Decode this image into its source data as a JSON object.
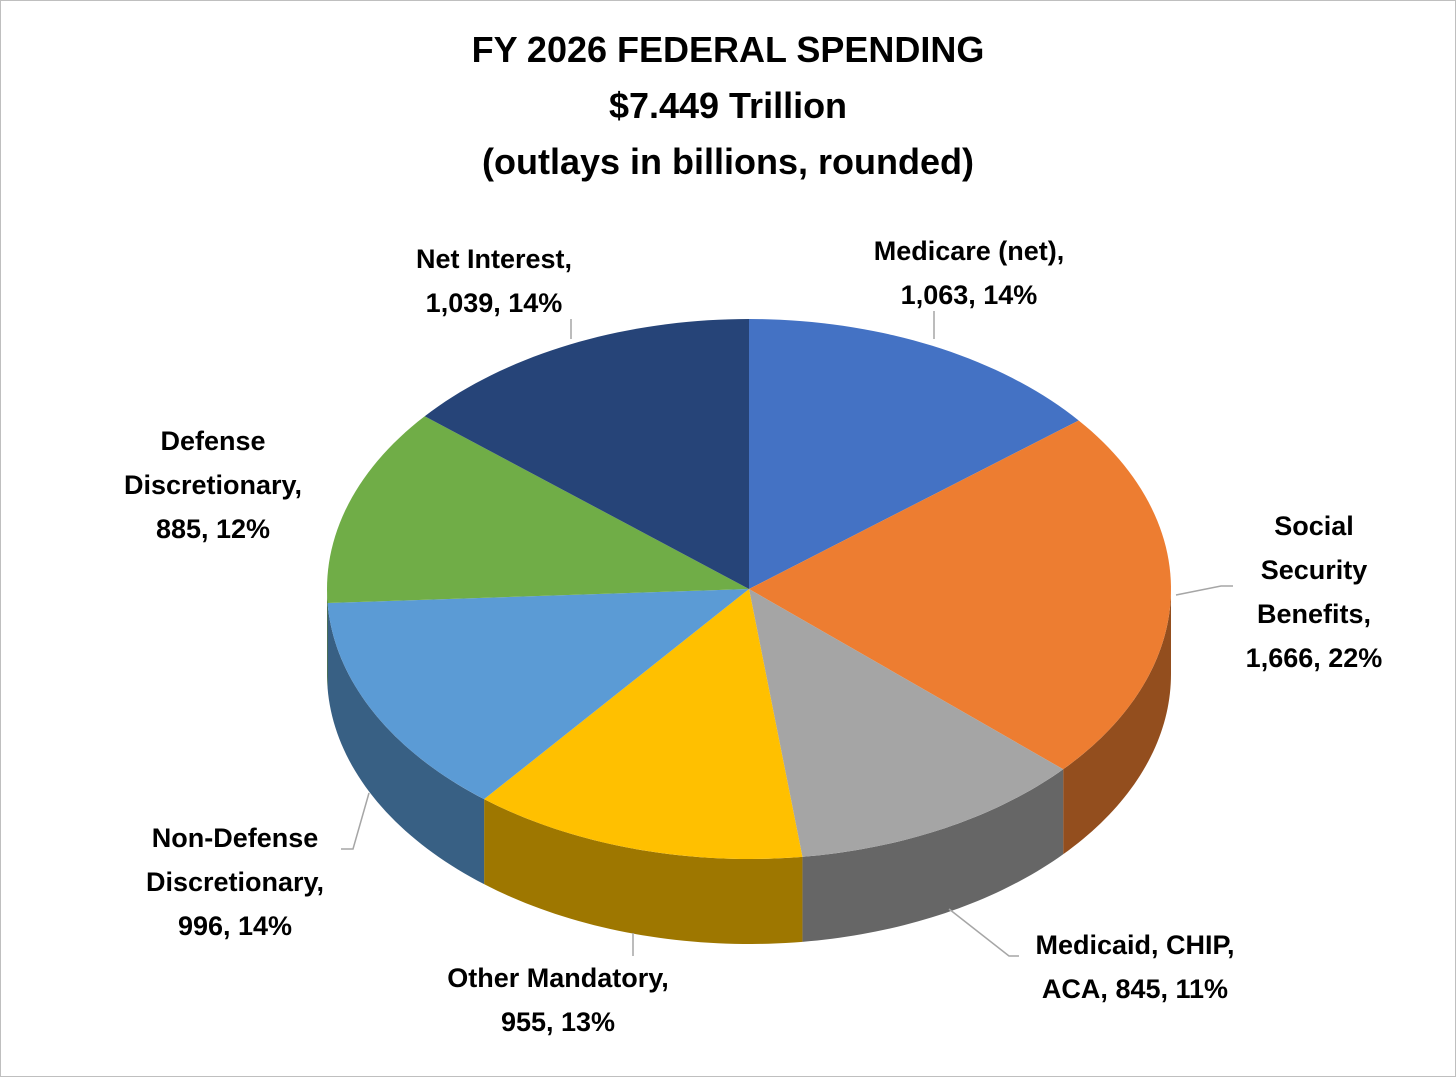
{
  "chart_data": {
    "type": "pie",
    "title": "FY 2026 FEDERAL SPENDING",
    "subtitle": [
      "$7.449 Trillion",
      "(outlays in billions, rounded)"
    ],
    "categories": [
      "Medicare (net),",
      "Social Security Benefits,",
      "Medicaid, CHIP, ACA,",
      "Other Mandatory,",
      "Non-Defense Discretionary,",
      "Defense Discretionary,",
      "Net Interest,"
    ],
    "values": [
      1063,
      1666,
      845,
      955,
      996,
      885,
      1039
    ],
    "value_labels": [
      "1,063,",
      "1,666,",
      "845,",
      "955,",
      "996,",
      "885,",
      "1,039,"
    ],
    "percents": [
      14,
      22,
      11,
      13,
      14,
      12,
      14
    ],
    "percent_labels": [
      "14%",
      "22%",
      "11%",
      "13%",
      "14%",
      "12%",
      "14%"
    ],
    "colors": [
      "#4472c4",
      "#ed7d31",
      "#a5a5a5",
      "#ffc000",
      "#5b9bd5",
      "#70ad47",
      "#264478"
    ],
    "start_angle": 0,
    "direction": "clockwise",
    "style": "3d"
  }
}
